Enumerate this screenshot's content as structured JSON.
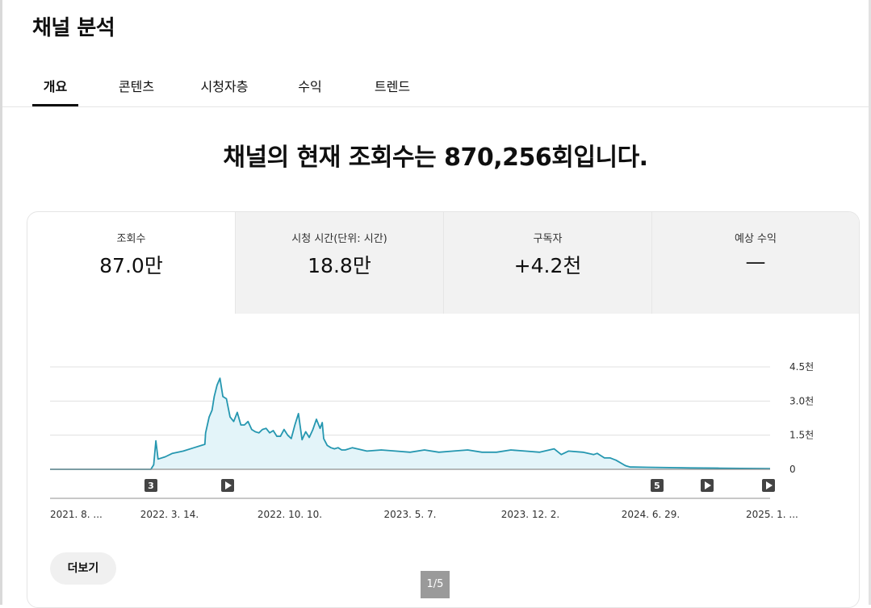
{
  "page": {
    "title": "채널 분석"
  },
  "tabs": [
    "개요",
    "콘텐츠",
    "시청자층",
    "수익",
    "트렌드"
  ],
  "headline": "채널의 현재 조회수는 870,256회입니다.",
  "metrics": [
    {
      "label": "조회수",
      "value": "87.0만"
    },
    {
      "label": "시청 시간(단위: 시간)",
      "value": "18.8만"
    },
    {
      "label": "구독자",
      "value": "+4.2천"
    },
    {
      "label": "예상 수익",
      "value": "—"
    }
  ],
  "more_button": "더보기",
  "pager": "1/5",
  "colors": {
    "line": "#2597b0",
    "fill": "#e3f4f9",
    "grid": "#e0e0e0",
    "marker": "#444444"
  },
  "chart_data": {
    "type": "area",
    "ylabels": [
      "4.5천",
      "3.0천",
      "1.5천",
      "0"
    ],
    "ylim": [
      0,
      4500
    ],
    "xlabels": [
      "2021. 8. ...",
      "2022. 3. 14.",
      "2022. 10. 10.",
      "2023. 5. 7.",
      "2023. 12. 2.",
      "2024. 6. 29.",
      "2025. 1. ..."
    ],
    "x": [
      0,
      140,
      144,
      147,
      150,
      160,
      170,
      185,
      200,
      215,
      216,
      221,
      225,
      228,
      232,
      236,
      240,
      245,
      250,
      255,
      260,
      265,
      270,
      275,
      280,
      285,
      290,
      295,
      300,
      305,
      310,
      315,
      320,
      325,
      330,
      335,
      340,
      345,
      350,
      355,
      360,
      365,
      370,
      375,
      378,
      380,
      385,
      390,
      395,
      400,
      405,
      410,
      420,
      440,
      460,
      480,
      500,
      520,
      540,
      560,
      580,
      600,
      620,
      640,
      660,
      680,
      700,
      710,
      720,
      740,
      755,
      760,
      770,
      778,
      786,
      797,
      800,
      806,
      810,
      830,
      870,
      890,
      930,
      960,
      1000
    ],
    "y": [
      0,
      0,
      200,
      1250,
      450,
      550,
      700,
      800,
      950,
      1100,
      1600,
      2300,
      2600,
      3200,
      3700,
      4000,
      3200,
      3100,
      2300,
      2100,
      2500,
      1950,
      1950,
      2100,
      1750,
      1650,
      1600,
      1750,
      1800,
      1600,
      1700,
      1450,
      1450,
      1750,
      1500,
      1350,
      1950,
      2450,
      1300,
      1650,
      1400,
      1750,
      2200,
      1800,
      2050,
      1350,
      1050,
      950,
      900,
      950,
      850,
      850,
      950,
      800,
      850,
      800,
      750,
      850,
      750,
      800,
      850,
      750,
      750,
      850,
      800,
      750,
      900,
      650,
      800,
      750,
      650,
      700,
      500,
      500,
      400,
      200,
      150,
      100,
      100,
      90,
      70,
      60,
      50,
      40,
      30
    ],
    "markers": [
      {
        "label": "3",
        "type": "number"
      },
      {
        "label": "",
        "type": "play"
      },
      {
        "label": "5",
        "type": "number"
      },
      {
        "label": "",
        "type": "play"
      },
      {
        "label": "",
        "type": "play"
      }
    ]
  }
}
